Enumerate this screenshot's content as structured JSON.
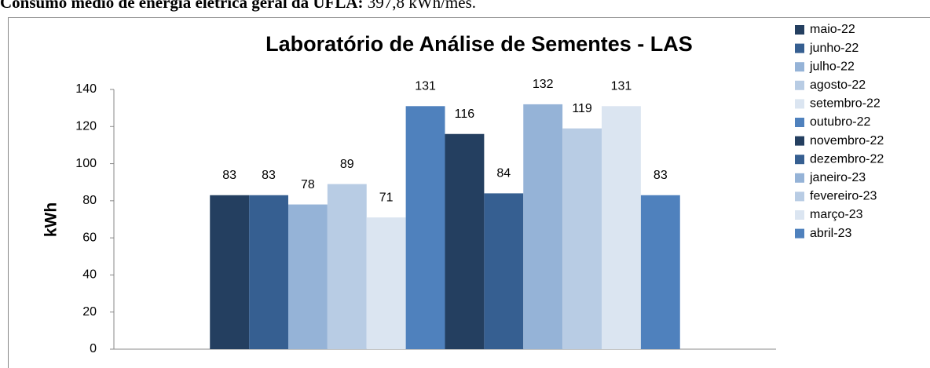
{
  "header": {
    "label": "Consumo médio de energia elétrica geral da UFLA:",
    "value": "397,8 kWh/mês."
  },
  "chart_data": {
    "type": "bar",
    "title": "Laboratório de Análise de Sementes - LAS",
    "y_label": "kWh",
    "categories": [
      null
    ],
    "series": [
      {
        "name": "maio-22",
        "color": "#243f60",
        "values": [
          83
        ]
      },
      {
        "name": "junho-22",
        "color": "#365f91",
        "values": [
          83
        ]
      },
      {
        "name": "julho-22",
        "color": "#95b3d7",
        "values": [
          78
        ]
      },
      {
        "name": "agosto-22",
        "color": "#b8cce4",
        "values": [
          89
        ]
      },
      {
        "name": "setembro-22",
        "color": "#dbe5f1",
        "values": [
          71
        ]
      },
      {
        "name": "outubro-22",
        "color": "#4f81bd",
        "values": [
          131
        ]
      },
      {
        "name": "novembro-22",
        "color": "#243f60",
        "values": [
          116
        ]
      },
      {
        "name": "dezembro-22",
        "color": "#365f91",
        "values": [
          84
        ]
      },
      {
        "name": "janeiro-23",
        "color": "#95b3d7",
        "values": [
          132
        ]
      },
      {
        "name": "fevereiro-23",
        "color": "#b8cce4",
        "values": [
          119
        ]
      },
      {
        "name": "março-23",
        "color": "#dbe5f1",
        "values": [
          131
        ]
      },
      {
        "name": "abril-23",
        "color": "#4f81bd",
        "values": [
          83
        ]
      }
    ],
    "ylim": [
      0,
      140
    ],
    "yticks": [
      0,
      20,
      40,
      60,
      80,
      100,
      120,
      140
    ],
    "grid": false,
    "legend": "right"
  }
}
